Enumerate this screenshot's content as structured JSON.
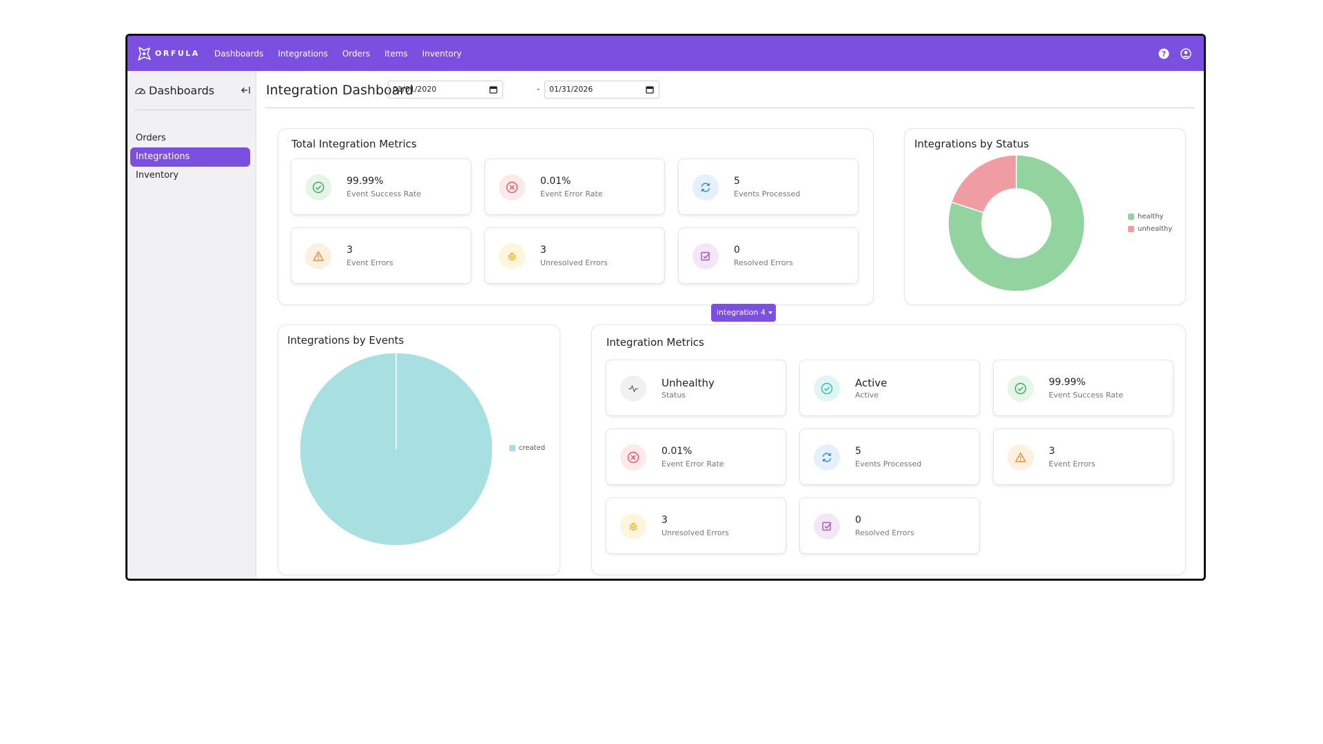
{
  "brand": {
    "name": "ORFULA"
  },
  "nav": {
    "links": [
      "Dashboards",
      "Integrations",
      "Orders",
      "Items",
      "Inventory"
    ]
  },
  "sidebar": {
    "title": "Dashboards",
    "items": [
      {
        "label": "Orders"
      },
      {
        "label": "Integrations",
        "active": true
      },
      {
        "label": "Inventory"
      }
    ]
  },
  "header": {
    "title": "Integration Dashboard",
    "start_date": "01/01/2020",
    "date_separator": "-",
    "end_date": "01/31/2026"
  },
  "total_metrics": {
    "title": "Total Integration Metrics",
    "cards": [
      {
        "value": "99.99%",
        "label": "Event Success Rate",
        "icon": "check-circle-icon"
      },
      {
        "value": "0.01%",
        "label": "Event Error Rate",
        "icon": "x-circle-icon"
      },
      {
        "value": "5",
        "label": "Events Processed",
        "icon": "refresh-icon"
      },
      {
        "value": "3",
        "label": "Event Errors",
        "icon": "warning-icon"
      },
      {
        "value": "3",
        "label": "Unresolved Errors",
        "icon": "bug-icon"
      },
      {
        "value": "0",
        "label": "Resolved Errors",
        "icon": "checkbox-icon"
      }
    ]
  },
  "status_chart": {
    "title": "Integrations by Status",
    "legend": [
      "healthy",
      "unhealthy"
    ]
  },
  "events_chart": {
    "title": "Integrations by Events",
    "legend": [
      "created"
    ]
  },
  "integration_metrics": {
    "title": "Integration Metrics",
    "selected": "integration 4",
    "cards": [
      {
        "value": "Unhealthy",
        "label": "Status",
        "icon": "pulse-icon"
      },
      {
        "value": "Active",
        "label": "Active",
        "icon": "check-circle-icon"
      },
      {
        "value": "99.99%",
        "label": "Event Success Rate",
        "icon": "check-circle-icon"
      },
      {
        "value": "0.01%",
        "label": "Event Error Rate",
        "icon": "x-circle-icon"
      },
      {
        "value": "5",
        "label": "Events Processed",
        "icon": "refresh-icon"
      },
      {
        "value": "3",
        "label": "Event Errors",
        "icon": "warning-icon"
      },
      {
        "value": "3",
        "label": "Unresolved Errors",
        "icon": "bug-icon"
      },
      {
        "value": "0",
        "label": "Resolved Errors",
        "icon": "checkbox-icon"
      }
    ]
  },
  "colors": {
    "accent": "#7b4fe0",
    "healthy": "#92d3a0",
    "unhealthy": "#ef9ca3",
    "created": "#a8dfe0"
  },
  "chart_data": [
    {
      "type": "pie",
      "variant": "donut",
      "title": "Integrations by Status",
      "categories": [
        "healthy",
        "unhealthy"
      ],
      "values": [
        4,
        1
      ],
      "legend": "right"
    },
    {
      "type": "pie",
      "title": "Integrations by Events",
      "categories": [
        "created"
      ],
      "values": [
        5
      ],
      "legend": "right"
    }
  ]
}
